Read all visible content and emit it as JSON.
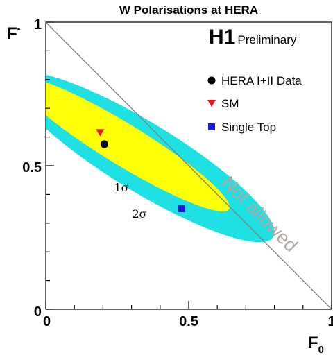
{
  "chart_data": {
    "type": "scatter",
    "title": "W Polarisations at HERA",
    "xlabel": "F",
    "xlabel_sub": "0",
    "ylabel": "F",
    "ylabel_sub": "-",
    "xlim": [
      0,
      1
    ],
    "ylim": [
      0,
      1
    ],
    "x_ticks": [
      0,
      0.5,
      1
    ],
    "y_ticks": [
      0,
      0.5,
      1
    ],
    "x_tick_labels": [
      "0",
      "0.5",
      "1"
    ],
    "y_tick_labels": [
      "0",
      "0.5",
      "1"
    ],
    "experiment": "H1",
    "status": "Preliminary",
    "series": [
      {
        "name": "HERA I+II Data",
        "marker": "circle",
        "color": "#000000",
        "x": 0.205,
        "y": 0.575
      },
      {
        "name": "SM",
        "marker": "triangle-down",
        "color": "#e8141a",
        "x": 0.19,
        "y": 0.615
      },
      {
        "name": "Single Top",
        "marker": "square",
        "color": "#1a1ad6",
        "x": 0.475,
        "y": 0.35
      }
    ],
    "contours": [
      {
        "label": "2σ",
        "color": "#1fe0e3",
        "center": [
          0.34,
          0.53
        ],
        "semi_axes": [
          0.535,
          0.12
        ],
        "angle_deg": -31.5
      },
      {
        "label": "1σ",
        "color": "#ffff05",
        "center": [
          0.27,
          0.575
        ],
        "semi_axes": [
          0.435,
          0.072
        ],
        "angle_deg": -31.5
      }
    ],
    "boundary": {
      "label": "Not allowed",
      "line": "F0 + F- = 1",
      "color": "#808080"
    },
    "grid": false,
    "legend_position": "top-right"
  }
}
